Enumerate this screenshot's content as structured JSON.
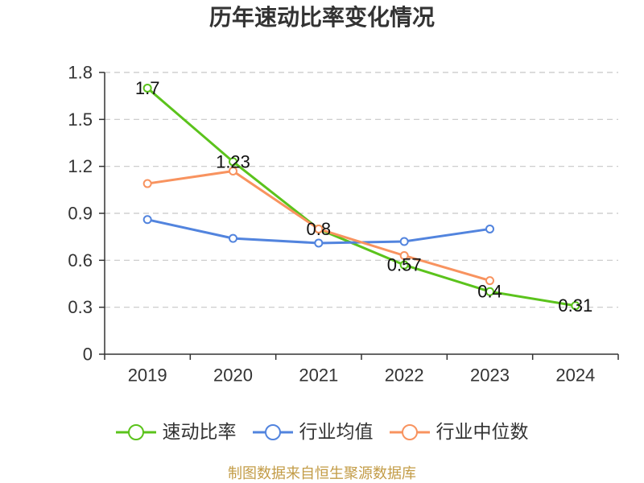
{
  "chart_data": {
    "type": "line",
    "title": "历年速动比率变化情况",
    "categories": [
      "2019",
      "2020",
      "2021",
      "2022",
      "2023",
      "2024"
    ],
    "ylim": [
      0,
      1.8
    ],
    "yticks": [
      0,
      0.3,
      0.6,
      0.9,
      1.2,
      1.5,
      1.8
    ],
    "grid": true,
    "legend_position": "bottom",
    "series": [
      {
        "name": "速动比率",
        "values": [
          1.7,
          1.23,
          0.8,
          0.57,
          0.4,
          0.31
        ],
        "color": "#5bc31c",
        "marker": "hollow-circle",
        "show_data_labels": true
      },
      {
        "name": "行业均值",
        "values": [
          0.86,
          0.74,
          0.71,
          0.72,
          0.8,
          null
        ],
        "color": "#5284de",
        "marker": "hollow-circle",
        "show_data_labels": false
      },
      {
        "name": "行业中位数",
        "values": [
          1.09,
          1.17,
          0.8,
          0.63,
          0.47,
          null
        ],
        "color": "#f8935f",
        "marker": "hollow-circle",
        "show_data_labels": false
      }
    ]
  },
  "footer": {
    "text": "制图数据来自恒生聚源数据库",
    "color": "#c39c47"
  }
}
